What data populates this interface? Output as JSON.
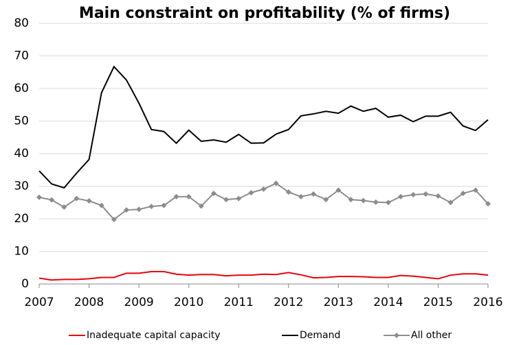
{
  "chart_data": {
    "type": "line",
    "title": "Main constraint on profitability (% of firms)",
    "x": [
      2007,
      2007.25,
      2007.5,
      2007.75,
      2008,
      2008.25,
      2008.5,
      2008.75,
      2009,
      2009.25,
      2009.5,
      2009.75,
      2010,
      2010.25,
      2010.5,
      2010.75,
      2011,
      2011.25,
      2011.5,
      2011.75,
      2012,
      2012.25,
      2012.5,
      2012.75,
      2013,
      2013.25,
      2013.5,
      2013.75,
      2014,
      2014.25,
      2014.5,
      2014.75,
      2015,
      2015.25,
      2015.5,
      2015.75,
      2016
    ],
    "series": [
      {
        "name": "Inadequate capital capacity",
        "color": "#e8000b",
        "values": [
          1.8,
          1.2,
          1.4,
          1.4,
          1.6,
          2,
          2,
          3.3,
          3.3,
          3.8,
          3.8,
          3,
          2.7,
          2.9,
          2.9,
          2.5,
          2.7,
          2.7,
          3,
          2.9,
          3.5,
          2.8,
          1.9,
          2,
          2.3,
          2.3,
          2.2,
          2,
          2,
          2.6,
          2.4,
          2,
          1.6,
          2.7,
          3.1,
          3.1,
          2.7
        ]
      },
      {
        "name": "Demand",
        "color": "#000000",
        "values": [
          34.7,
          30.7,
          29.5,
          34,
          38.2,
          58.7,
          66.7,
          62.6,
          55.5,
          47.4,
          46.8,
          43.2,
          47.2,
          43.8,
          44.2,
          43.5,
          45.9,
          43.2,
          43.3,
          46,
          47.4,
          51.6,
          52.2,
          53,
          52.4,
          54.6,
          53,
          53.9,
          51.2,
          51.8,
          49.8,
          51.5,
          51.5,
          52.7,
          48.5,
          47.1,
          50.4
        ]
      },
      {
        "name": "All other",
        "color": "#8c8c8c",
        "marker": "diamond",
        "values": [
          26.6,
          25.8,
          23.6,
          26.2,
          25.5,
          24.1,
          19.8,
          22.7,
          22.9,
          23.8,
          24.1,
          26.8,
          26.8,
          23.9,
          27.8,
          25.9,
          26.2,
          28,
          29.1,
          30.9,
          28.2,
          26.8,
          27.6,
          25.9,
          28.8,
          25.9,
          25.6,
          25.1,
          25,
          26.8,
          27.4,
          27.6,
          27,
          25,
          27.8,
          28.8,
          24.6
        ]
      }
    ],
    "xlim": [
      2007,
      2016
    ],
    "xticks": [
      2007,
      2008,
      2009,
      2010,
      2011,
      2012,
      2013,
      2014,
      2015,
      2016
    ],
    "ylim": [
      0,
      80
    ],
    "yticks": [
      0,
      10,
      20,
      30,
      40,
      50,
      60,
      70,
      80
    ],
    "grid": true,
    "legend": "bottom"
  }
}
